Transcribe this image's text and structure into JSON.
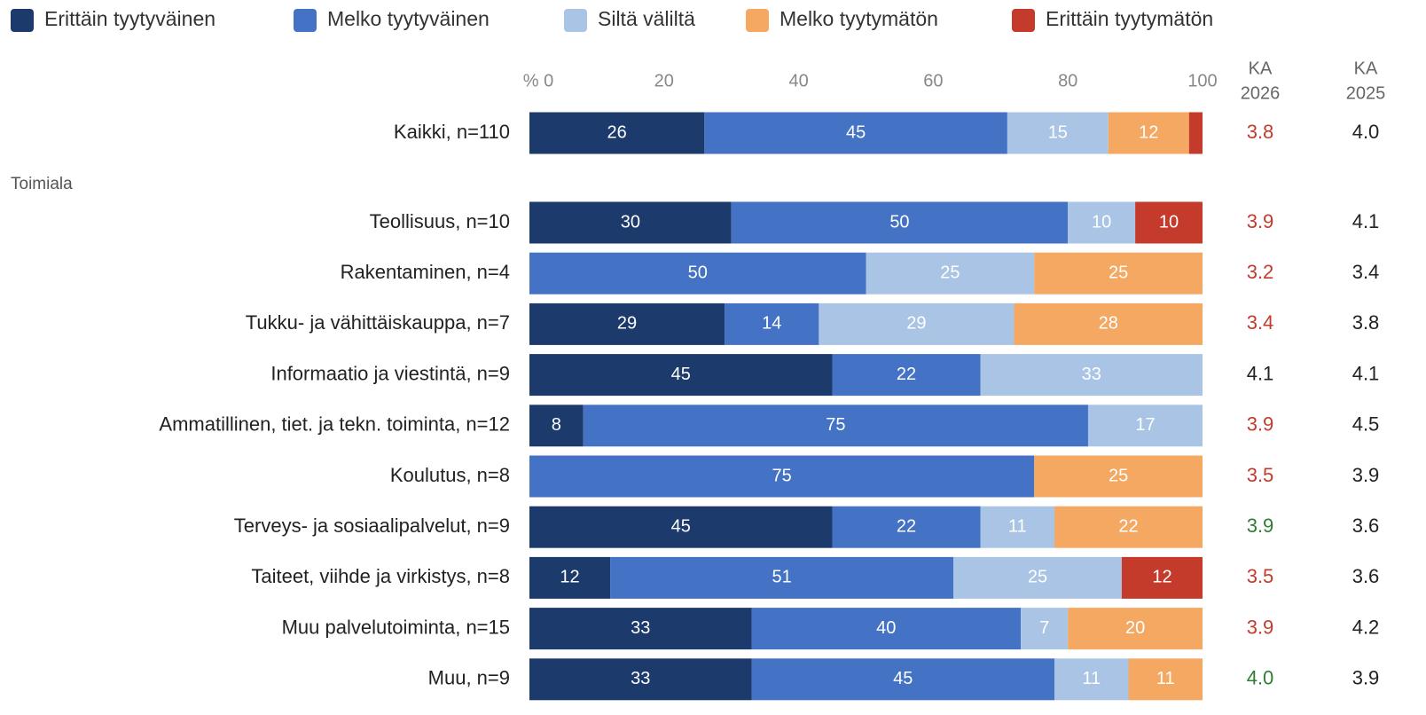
{
  "chart_data": {
    "type": "stacked-bar-horizontal",
    "categories": [
      "Kaikki, n=110",
      "Teollisuus, n=10",
      "Rakentaminen, n=4",
      "Tukku- ja vähittäiskauppa, n=7",
      "Informaatio ja viestintä, n=9",
      "Ammatillinen, tiet. ja tekn. toiminta, n=12",
      "Koulutus, n=8",
      "Terveys- ja sosiaalipalvelut, n=9",
      "Taiteet, viihde ja virkistys, n=8",
      "Muu palvelutoiminta, n=15",
      "Muu, n=9"
    ],
    "group_label": "Toimiala",
    "series": [
      {
        "name": "Erittäin tyytyväinen",
        "color": "#1c3a6b",
        "values": [
          26,
          30,
          0,
          29,
          45,
          8,
          0,
          45,
          12,
          33,
          33
        ]
      },
      {
        "name": "Melko tyytyväinen",
        "color": "#4472c4",
        "values": [
          45,
          50,
          50,
          14,
          22,
          75,
          75,
          22,
          51,
          40,
          45
        ]
      },
      {
        "name": "Siltä väliltä",
        "color": "#a9c4e4",
        "values": [
          15,
          10,
          25,
          29,
          33,
          17,
          0,
          11,
          25,
          7,
          11
        ]
      },
      {
        "name": "Melko tyytymätön",
        "color": "#f4a862",
        "values": [
          12,
          0,
          25,
          28,
          0,
          0,
          25,
          22,
          0,
          20,
          11
        ]
      },
      {
        "name": "Erittäin tyytymätön",
        "color": "#c43b2c",
        "values": [
          2,
          10,
          0,
          0,
          0,
          0,
          0,
          0,
          12,
          0,
          0
        ]
      }
    ],
    "xlim": [
      0,
      100
    ],
    "xticks": [
      {
        "value": 0,
        "label": "% 0"
      },
      20,
      40,
      60,
      80,
      100
    ],
    "ka_columns": [
      {
        "label": [
          "KA",
          "2026"
        ],
        "values": [
          "3.8",
          "3.9",
          "3.2",
          "3.4",
          "4.1",
          "3.9",
          "3.5",
          "3.9",
          "3.5",
          "3.9",
          "4.0"
        ]
      },
      {
        "label": [
          "KA",
          "2025"
        ],
        "values": [
          "4.0",
          "4.1",
          "3.4",
          "3.8",
          "4.1",
          "4.5",
          "3.9",
          "3.6",
          "3.6",
          "4.2",
          "3.9"
        ]
      }
    ]
  }
}
